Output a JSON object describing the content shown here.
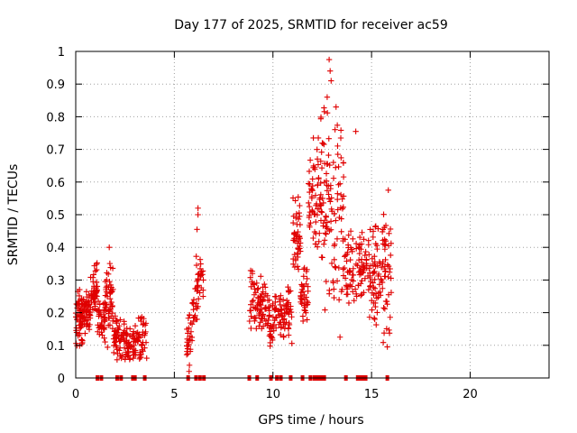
{
  "chart_data": {
    "type": "scatter",
    "title": "Day 177 of 2025, SRMTID for receiver ac59",
    "xlabel": "GPS time / hours",
    "ylabel": "SRMTID / TECUs",
    "xlim": [
      0,
      24
    ],
    "ylim": [
      0,
      1
    ],
    "xticks": [
      0,
      5,
      10,
      15,
      20
    ],
    "yticks": [
      0,
      0.1,
      0.2,
      0.3,
      0.4,
      0.5,
      0.6,
      0.7,
      0.8,
      0.9,
      1
    ],
    "xtick_labels": [
      "0",
      "5",
      "10",
      "15",
      "20"
    ],
    "ytick_labels": [
      "0",
      "0.1",
      "0.2",
      "0.3",
      "0.4",
      "0.5",
      "0.6",
      "0.7",
      "0.8",
      "0.9",
      "1"
    ],
    "grid": true,
    "marker": "+",
    "color": "#e00000",
    "series": [
      {
        "name": "SRMTID",
        "clusters": [
          {
            "x": [
              0.0,
              0.35
            ],
            "y": [
              0.08,
              0.3
            ],
            "n": 60
          },
          {
            "x": [
              0.35,
              0.75
            ],
            "y": [
              0.12,
              0.27
            ],
            "n": 50
          },
          {
            "x": [
              0.75,
              1.1
            ],
            "y": [
              0.16,
              0.37
            ],
            "n": 45
          },
          {
            "x": [
              1.1,
              1.5
            ],
            "y": [
              0.1,
              0.25
            ],
            "n": 40
          },
          {
            "x": [
              1.5,
              1.9
            ],
            "y": [
              0.08,
              0.4
            ],
            "n": 50
          },
          {
            "x": [
              1.9,
              2.5
            ],
            "y": [
              0.05,
              0.2
            ],
            "n": 55
          },
          {
            "x": [
              2.5,
              3.0
            ],
            "y": [
              0.03,
              0.17
            ],
            "n": 45
          },
          {
            "x": [
              3.0,
              3.6
            ],
            "y": [
              0.04,
              0.2
            ],
            "n": 45
          },
          {
            "x": [
              5.6,
              5.9
            ],
            "y": [
              0.02,
              0.2
            ],
            "n": 25
          },
          {
            "x": [
              5.9,
              6.2
            ],
            "y": [
              0.13,
              0.3
            ],
            "n": 20
          },
          {
            "x": [
              6.1,
              6.5
            ],
            "y": [
              0.22,
              0.38
            ],
            "n": 25
          },
          {
            "x": [
              8.8,
              9.3
            ],
            "y": [
              0.1,
              0.36
            ],
            "n": 40
          },
          {
            "x": [
              9.3,
              9.8
            ],
            "y": [
              0.12,
              0.32
            ],
            "n": 45
          },
          {
            "x": [
              9.8,
              10.4
            ],
            "y": [
              0.08,
              0.28
            ],
            "n": 50
          },
          {
            "x": [
              10.4,
              11.0
            ],
            "y": [
              0.1,
              0.29
            ],
            "n": 50
          },
          {
            "x": [
              11.0,
              11.4
            ],
            "y": [
              0.3,
              0.57
            ],
            "n": 50
          },
          {
            "x": [
              11.4,
              11.8
            ],
            "y": [
              0.15,
              0.38
            ],
            "n": 40
          },
          {
            "x": [
              11.8,
              12.4
            ],
            "y": [
              0.35,
              0.73
            ],
            "n": 55
          },
          {
            "x": [
              12.4,
              12.9
            ],
            "y": [
              0.2,
              0.86
            ],
            "n": 55
          },
          {
            "x": [
              12.9,
              13.6
            ],
            "y": [
              0.15,
              0.83
            ],
            "n": 60
          },
          {
            "x": [
              13.6,
              14.2
            ],
            "y": [
              0.17,
              0.5
            ],
            "n": 40
          },
          {
            "x": [
              14.2,
              14.8
            ],
            "y": [
              0.22,
              0.46
            ],
            "n": 45
          },
          {
            "x": [
              14.8,
              15.4
            ],
            "y": [
              0.15,
              0.49
            ],
            "n": 55
          },
          {
            "x": [
              15.4,
              16.0
            ],
            "y": [
              0.09,
              0.57
            ],
            "n": 55
          }
        ],
        "outliers": [
          {
            "x": 12.85,
            "y": 0.975
          },
          {
            "x": 12.9,
            "y": 0.94
          },
          {
            "x": 12.95,
            "y": 0.91
          },
          {
            "x": 12.75,
            "y": 0.86
          },
          {
            "x": 14.2,
            "y": 0.755
          },
          {
            "x": 13.2,
            "y": 0.83
          },
          {
            "x": 6.2,
            "y": 0.52
          },
          {
            "x": 6.2,
            "y": 0.5
          },
          {
            "x": 6.15,
            "y": 0.455
          },
          {
            "x": 1.7,
            "y": 0.4
          },
          {
            "x": 15.85,
            "y": 0.575
          },
          {
            "x": 15.8,
            "y": 0.095
          },
          {
            "x": 13.4,
            "y": 0.125
          },
          {
            "x": 5.75,
            "y": 0.02
          },
          {
            "x": 12.05,
            "y": 0.735
          },
          {
            "x": 12.3,
            "y": 0.735
          }
        ]
      }
    ],
    "gap_markers_x": [
      1.1,
      1.3,
      2.1,
      2.3,
      2.9,
      3.0,
      3.5,
      5.7,
      6.1,
      6.3,
      6.5,
      8.8,
      9.2,
      9.9,
      10.2,
      10.4,
      10.9,
      11.5,
      11.9,
      12.1,
      12.2,
      12.3,
      12.4,
      12.5,
      12.6,
      13.7,
      14.3,
      14.4,
      14.5,
      14.6,
      14.7,
      15.8
    ]
  }
}
